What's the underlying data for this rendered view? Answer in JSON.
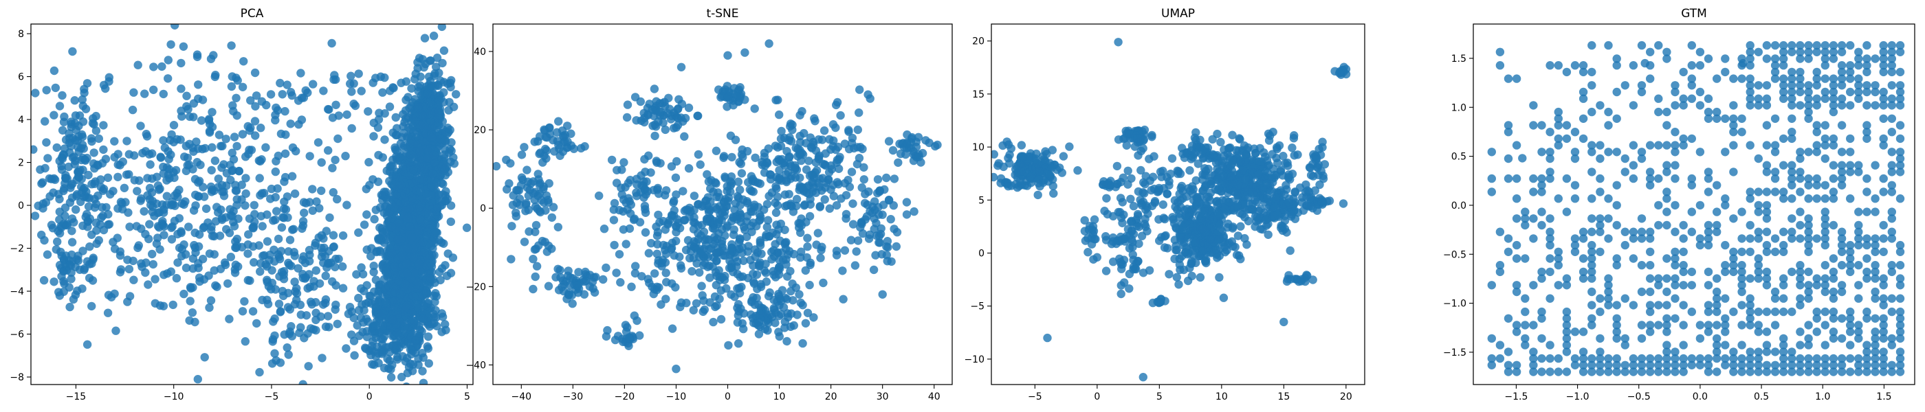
{
  "figure": {
    "point_color": "#1f77b4",
    "point_alpha": 0.8
  },
  "chart_data": [
    {
      "type": "scatter",
      "title": "PCA",
      "xlabel": "",
      "ylabel": "",
      "xlim": [
        -17.3,
        5.3
      ],
      "ylim": [
        -8.35,
        8.45
      ],
      "xticks": [
        -15,
        -10,
        -5,
        0,
        5
      ],
      "yticks": [
        -8,
        -6,
        -4,
        -2,
        0,
        2,
        4,
        6,
        8
      ],
      "grid": false,
      "series": [
        {
          "clusters": [
            {
              "cx": 2.1,
              "cy": -1.8,
              "sx": 0.8,
              "sy": 2.3,
              "n": 1200,
              "rot": -0.35
            },
            {
              "cx": 3.0,
              "cy": 3.2,
              "sx": 0.55,
              "sy": 1.6,
              "n": 500,
              "rot": -0.2
            },
            {
              "cx": 1.0,
              "cy": -5.5,
              "sx": 0.9,
              "sy": 1.1,
              "n": 250,
              "rot": 0
            },
            {
              "cx": -15.0,
              "cy": 1.2,
              "sx": 0.8,
              "sy": 1.7,
              "n": 160,
              "rot": 0
            },
            {
              "cx": -15.4,
              "cy": -3.0,
              "sx": 0.45,
              "sy": 0.8,
              "n": 40,
              "rot": 0
            },
            {
              "cx": -9.0,
              "cy": 0.5,
              "sx": 3.6,
              "sy": 3.0,
              "n": 520,
              "rot": 0
            },
            {
              "cx": -3.2,
              "cy": -3.5,
              "sx": 1.4,
              "sy": 2.0,
              "n": 150,
              "rot": 0
            },
            {
              "cx": -1.5,
              "cy": 4.8,
              "sx": 2.5,
              "sy": 0.8,
              "n": 50,
              "rot": 0
            }
          ],
          "points": [
            [
              -9.5,
              7.4
            ],
            [
              3.3,
              7.9
            ],
            [
              -14.2,
              -4.7
            ],
            [
              -5.3,
              2.7
            ]
          ]
        }
      ]
    },
    {
      "type": "scatter",
      "title": "t-SNE",
      "xlabel": "",
      "ylabel": "",
      "xlim": [
        -45.5,
        43.5
      ],
      "ylim": [
        -45,
        47
      ],
      "xticks": [
        -40,
        -30,
        -20,
        -10,
        0,
        10,
        20,
        30,
        40
      ],
      "yticks": [
        -40,
        -20,
        0,
        20,
        40
      ],
      "grid": false,
      "series": [
        {
          "clusters": [
            {
              "cx": -38,
              "cy": 2,
              "sx": 2.5,
              "sy": 7,
              "n": 70,
              "rot": 0
            },
            {
              "cx": -33,
              "cy": 17,
              "sx": 2.5,
              "sy": 2,
              "n": 40,
              "rot": 0
            },
            {
              "cx": -30,
              "cy": -19,
              "sx": 3,
              "sy": 2,
              "n": 50,
              "rot": 0
            },
            {
              "cx": -20,
              "cy": -33,
              "sx": 1.5,
              "sy": 1.5,
              "n": 20,
              "rot": 0
            },
            {
              "cx": -13,
              "cy": 24,
              "sx": 3,
              "sy": 2.5,
              "n": 60,
              "rot": 0
            },
            {
              "cx": -18,
              "cy": 5,
              "sx": 3,
              "sy": 5,
              "n": 50,
              "rot": 0
            },
            {
              "cx": 1,
              "cy": 29,
              "sx": 1.5,
              "sy": 1.5,
              "n": 30,
              "rot": 0
            },
            {
              "cx": 0,
              "cy": -12,
              "sx": 10,
              "sy": 8,
              "n": 350,
              "rot": 0
            },
            {
              "cx": 15,
              "cy": 10,
              "sx": 8,
              "sy": 8,
              "n": 250,
              "rot": 0
            },
            {
              "cx": 8,
              "cy": -27,
              "sx": 3,
              "sy": 3,
              "n": 60,
              "rot": 0
            },
            {
              "cx": 29,
              "cy": -4,
              "sx": 3,
              "sy": 5,
              "n": 60,
              "rot": 0
            },
            {
              "cx": 36,
              "cy": 15,
              "sx": 2,
              "sy": 2,
              "n": 30,
              "rot": 0
            },
            {
              "cx": -3,
              "cy": 0,
              "sx": 6,
              "sy": 5,
              "n": 100,
              "rot": 0
            }
          ],
          "points": [
            [
              8,
              42
            ],
            [
              -10,
              -41
            ],
            [
              -42,
              -13
            ],
            [
              -9,
              36
            ],
            [
              0,
              39
            ],
            [
              30,
              -22
            ]
          ]
        }
      ]
    },
    {
      "type": "scatter",
      "title": "UMAP",
      "xlabel": "",
      "ylabel": "",
      "xlim": [
        -8.5,
        21.5
      ],
      "ylim": [
        -12.4,
        21.6
      ],
      "xticks": [
        -5,
        0,
        5,
        10,
        15,
        20
      ],
      "yticks": [
        -10,
        -5,
        0,
        5,
        10,
        15,
        20
      ],
      "grid": false,
      "series": [
        {
          "clusters": [
            {
              "cx": -5.5,
              "cy": 8,
              "sx": 1.2,
              "sy": 1,
              "n": 150,
              "rot": 0
            },
            {
              "cx": 3,
              "cy": 11,
              "sx": 0.5,
              "sy": 0.4,
              "n": 40,
              "rot": 0
            },
            {
              "cx": 3.5,
              "cy": 5,
              "sx": 1,
              "sy": 3,
              "n": 80,
              "rot": 0
            },
            {
              "cx": 8.5,
              "cy": 2,
              "sx": 1.3,
              "sy": 1.7,
              "n": 300,
              "rot": 0
            },
            {
              "cx": 11.5,
              "cy": 7,
              "sx": 2.2,
              "sy": 1.8,
              "n": 400,
              "rot": 0
            },
            {
              "cx": 14.5,
              "cy": 4,
              "sx": 1,
              "sy": 1,
              "n": 80,
              "rot": 0
            },
            {
              "cx": 17.5,
              "cy": 5,
              "sx": 0.5,
              "sy": 0.5,
              "n": 30,
              "rot": 0
            },
            {
              "cx": 17.5,
              "cy": 8.5,
              "sx": 0.4,
              "sy": 0.8,
              "n": 20,
              "rot": 0
            },
            {
              "cx": 8,
              "cy": 10,
              "sx": 0.7,
              "sy": 0.7,
              "n": 30,
              "rot": 0
            },
            {
              "cx": 2,
              "cy": 0.5,
              "sx": 0.8,
              "sy": 1.5,
              "n": 40,
              "rot": 0
            },
            {
              "cx": 16,
              "cy": -2.5,
              "sx": 0.6,
              "sy": 0.2,
              "n": 15,
              "rot": 0
            },
            {
              "cx": 1,
              "cy": 6.5,
              "sx": 0.6,
              "sy": 0.2,
              "n": 15,
              "rot": 0
            },
            {
              "cx": -0.5,
              "cy": 2,
              "sx": 0.3,
              "sy": 1,
              "n": 15,
              "rot": 0
            },
            {
              "cx": 19.7,
              "cy": 17.2,
              "sx": 0.25,
              "sy": 0.25,
              "n": 12,
              "rot": 0
            },
            {
              "cx": 5,
              "cy": -4.5,
              "sx": 0.2,
              "sy": 0.2,
              "n": 10,
              "rot": 0
            }
          ],
          "points": [
            [
              1.7,
              19.9
            ],
            [
              -4,
              -8
            ],
            [
              3.7,
              -11.7
            ],
            [
              15,
              -6.5
            ],
            [
              0,
              -0.4
            ],
            [
              -0.3,
              -0.6
            ]
          ]
        }
      ]
    },
    {
      "type": "scatter",
      "title": "GTM",
      "xlabel": "",
      "ylabel": "",
      "xlim": [
        -1.85,
        1.75
      ],
      "ylim": [
        -1.83,
        1.85
      ],
      "xticks": [
        -1.5,
        -1.0,
        -0.5,
        0.0,
        0.5,
        1.0,
        1.5
      ],
      "yticks": [
        -1.5,
        -1.0,
        -0.5,
        0.0,
        0.5,
        1.0,
        1.5
      ],
      "grid": false,
      "series": [
        {
          "lattice": {
            "x0": -1.7,
            "dx": 0.068,
            "nx": 50,
            "y0": -1.7,
            "dy": 0.068,
            "ny": 50
          },
          "points": [
            [
              -1.45,
              0.48
            ],
            [
              -0.45,
              1.45
            ],
            [
              0.35,
              1.45
            ]
          ]
        }
      ]
    }
  ]
}
